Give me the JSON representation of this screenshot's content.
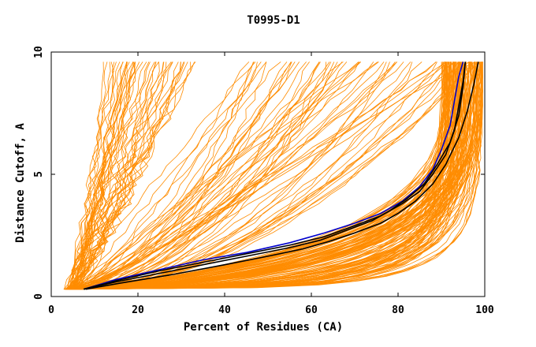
{
  "chart_data": {
    "type": "line",
    "title": "T0995-D1",
    "xlabel": "Percent of Residues (CA)",
    "ylabel": "Distance Cutoff, A",
    "xlim": [
      0,
      100
    ],
    "ylim": [
      0,
      10
    ],
    "xticks": [
      "0",
      "20",
      "40",
      "60",
      "80",
      "100"
    ],
    "yticks": [
      "0",
      "5",
      "10"
    ],
    "grid": false,
    "colors": {
      "group": "#ff8c00",
      "highlight_blue": "#0000cc",
      "highlight_black": "#000000",
      "axes": "#000000"
    },
    "series": [
      {
        "color": "#0000cc",
        "x": [
          7.5,
          15,
          25,
          35,
          45,
          55,
          63,
          70,
          76,
          81,
          85,
          88,
          90,
          92,
          93,
          94,
          95
        ],
        "y": [
          0.3,
          0.7,
          1.1,
          1.5,
          1.8,
          2.2,
          2.6,
          3.0,
          3.4,
          3.9,
          4.5,
          5.2,
          6.0,
          7.0,
          8.0,
          9.0,
          9.6
        ]
      },
      {
        "color": "#000000",
        "x": [
          7.5,
          15,
          25,
          35,
          45,
          55,
          63,
          70,
          76,
          81,
          85,
          88,
          91,
          93,
          94,
          95,
          95.5
        ],
        "y": [
          0.3,
          0.65,
          1.05,
          1.4,
          1.75,
          2.1,
          2.45,
          2.9,
          3.3,
          3.8,
          4.3,
          5.0,
          5.8,
          6.8,
          7.8,
          8.8,
          9.6
        ]
      },
      {
        "color": "#000000",
        "x": [
          7.5,
          15,
          25,
          35,
          45,
          55,
          62,
          68,
          74,
          78,
          82,
          86,
          89,
          92,
          94,
          95,
          95.5
        ],
        "y": [
          0.3,
          0.6,
          0.95,
          1.3,
          1.65,
          2.0,
          2.3,
          2.7,
          3.1,
          3.5,
          4.0,
          4.6,
          5.4,
          6.3,
          7.4,
          8.6,
          9.6
        ]
      },
      {
        "color": "#000000",
        "x": [
          8,
          16,
          28,
          40,
          50,
          58,
          64,
          70,
          76,
          80,
          84,
          88,
          91,
          94,
          96,
          97.5,
          98.5
        ],
        "y": [
          0.3,
          0.55,
          0.9,
          1.3,
          1.65,
          1.95,
          2.25,
          2.6,
          3.0,
          3.4,
          3.9,
          4.6,
          5.4,
          6.5,
          7.6,
          8.7,
          9.6
        ]
      }
    ],
    "group_note": "ensemble of orange model curves"
  }
}
